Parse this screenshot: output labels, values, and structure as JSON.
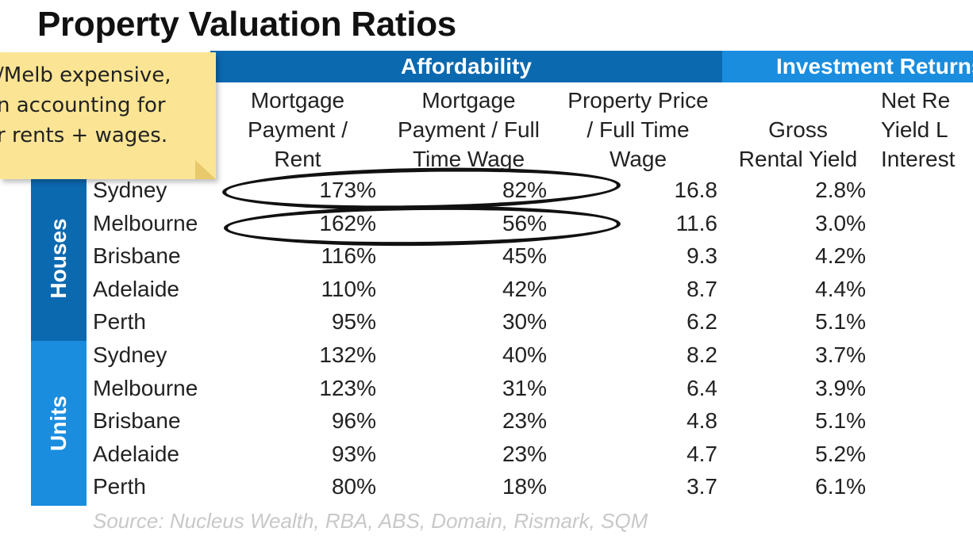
{
  "title": "Property Valuation Ratios",
  "groups": {
    "affordability": "Affordability",
    "investment": "Investment Returns"
  },
  "columns": [
    "Mortgage\nPayment /\nRent",
    "Mortgage\nPayment / Full\nTime Wage",
    "Property Price\n/ Full Time\nWage",
    "Gross\nRental Yield",
    "Net Re\nYield L\nInterest"
  ],
  "sides": {
    "houses": "Houses",
    "units": "Units"
  },
  "rows": [
    {
      "city": "Sydney",
      "a": "173%",
      "b": "82%",
      "c": "16.8",
      "d": "2.8%"
    },
    {
      "city": "Melbourne",
      "a": "162%",
      "b": "56%",
      "c": "11.6",
      "d": "3.0%"
    },
    {
      "city": "Brisbane",
      "a": "116%",
      "b": "45%",
      "c": "9.3",
      "d": "4.2%"
    },
    {
      "city": "Adelaide",
      "a": "110%",
      "b": "42%",
      "c": "8.7",
      "d": "4.4%"
    },
    {
      "city": "Perth",
      "a": "95%",
      "b": "30%",
      "c": "6.2",
      "d": "5.1%"
    },
    {
      "city": "Sydney",
      "a": "132%",
      "b": "40%",
      "c": "8.2",
      "d": "3.7%"
    },
    {
      "city": "Melbourne",
      "a": "123%",
      "b": "31%",
      "c": "6.4",
      "d": "3.9%"
    },
    {
      "city": "Brisbane",
      "a": "96%",
      "b": "23%",
      "c": "4.8",
      "d": "5.1%"
    },
    {
      "city": "Adelaide",
      "a": "93%",
      "b": "23%",
      "c": "4.7",
      "d": "5.2%"
    },
    {
      "city": "Perth",
      "a": "80%",
      "b": "18%",
      "c": "3.7",
      "d": "6.1%"
    }
  ],
  "source": "Source: Nucleus Wealth, RBA, ABS, Domain, Rismark, SQM",
  "sticky_note": {
    "lines": [
      "/Melb expensive,",
      "n accounting for",
      "r rents + wages."
    ]
  }
}
